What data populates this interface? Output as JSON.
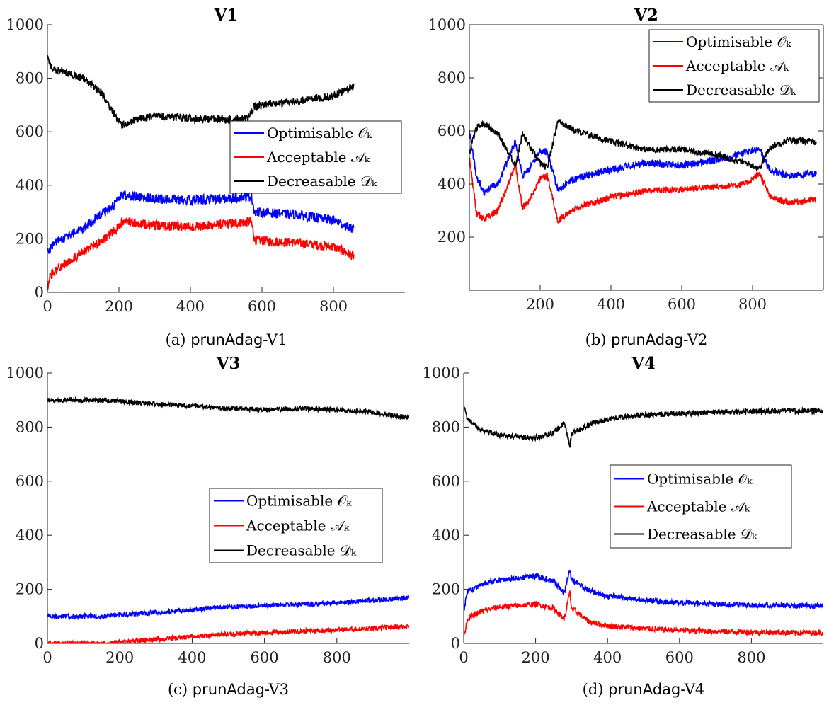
{
  "chart_data": [
    {
      "type": "line",
      "title": "V1",
      "caption_prefix": "(a)",
      "caption_name": "prunAdag",
      "caption_suffix": "-V1",
      "xlim": [
        0,
        1000
      ],
      "ylim": [
        0,
        1000
      ],
      "xticks": [
        0,
        200,
        400,
        600,
        800
      ],
      "yticks": [
        0,
        200,
        400,
        600,
        800,
        1000
      ],
      "legend": "center-right",
      "series": [
        {
          "name": "Optimisable 𝒪ₖ",
          "color": "#0000ff",
          "noise": 18,
          "x": [
            0,
            20,
            100,
            190,
            210,
            300,
            400,
            500,
            570,
            580,
            700,
            800,
            857
          ],
          "y": [
            150,
            185,
            240,
            330,
            365,
            350,
            345,
            350,
            360,
            300,
            290,
            270,
            235
          ]
        },
        {
          "name": "Acceptable 𝒜ₖ",
          "color": "#ff0000",
          "noise": 18,
          "x": [
            0,
            5,
            30,
            100,
            190,
            210,
            300,
            400,
            500,
            570,
            580,
            700,
            800,
            857
          ],
          "y": [
            10,
            60,
            90,
            150,
            230,
            265,
            250,
            245,
            255,
            265,
            195,
            185,
            170,
            135
          ]
        },
        {
          "name": "Decreasable 𝒟ₖ",
          "color": "#000000",
          "noise": 15,
          "x": [
            0,
            10,
            100,
            150,
            200,
            210,
            250,
            300,
            400,
            500,
            560,
            580,
            700,
            800,
            857
          ],
          "y": [
            880,
            840,
            800,
            745,
            640,
            625,
            645,
            660,
            650,
            645,
            650,
            695,
            715,
            735,
            770
          ]
        }
      ]
    },
    {
      "type": "line",
      "title": "V2",
      "caption_prefix": "(b)",
      "caption_name": "prunAdag",
      "caption_suffix": "-V2",
      "xlim": [
        0,
        1000
      ],
      "ylim": [
        0,
        1000
      ],
      "xticks": [
        200,
        400,
        600,
        800
      ],
      "yticks": [
        200,
        400,
        600,
        800,
        1000
      ],
      "legend": "top-right",
      "series": [
        {
          "name": "Optimisable 𝒪ₖ",
          "color": "#0000ff",
          "noise": 14,
          "x": [
            0,
            20,
            40,
            80,
            130,
            150,
            170,
            200,
            220,
            250,
            300,
            400,
            500,
            600,
            700,
            780,
            820,
            850,
            900,
            980
          ],
          "y": [
            600,
            430,
            370,
            400,
            560,
            430,
            460,
            525,
            520,
            380,
            420,
            455,
            480,
            470,
            490,
            520,
            530,
            450,
            430,
            440
          ]
        },
        {
          "name": "Acceptable 𝒜ₖ",
          "color": "#ff0000",
          "noise": 12,
          "x": [
            0,
            20,
            40,
            80,
            130,
            150,
            170,
            200,
            220,
            250,
            300,
            400,
            500,
            600,
            700,
            780,
            820,
            850,
            900,
            980
          ],
          "y": [
            500,
            290,
            265,
            300,
            470,
            310,
            340,
            420,
            430,
            260,
            310,
            350,
            375,
            380,
            390,
            400,
            440,
            350,
            330,
            340
          ]
        },
        {
          "name": "Decreasable 𝒟ₖ",
          "color": "#000000",
          "noise": 12,
          "x": [
            0,
            20,
            40,
            80,
            130,
            150,
            170,
            200,
            220,
            250,
            300,
            400,
            500,
            600,
            700,
            780,
            820,
            850,
            900,
            980
          ],
          "y": [
            520,
            610,
            630,
            590,
            470,
            590,
            540,
            480,
            460,
            640,
            600,
            560,
            530,
            530,
            510,
            480,
            460,
            540,
            565,
            560
          ]
        }
      ]
    },
    {
      "type": "line",
      "title": "V3",
      "caption_prefix": "(c)",
      "caption_name": "prunAdag",
      "caption_suffix": "-V3",
      "xlim": [
        0,
        1000
      ],
      "ylim": [
        0,
        1000
      ],
      "xticks": [
        0,
        200,
        400,
        600,
        800
      ],
      "yticks": [
        0,
        200,
        400,
        600,
        800,
        1000
      ],
      "legend": "center-right",
      "series": [
        {
          "name": "Optimisable 𝒪ₖ",
          "color": "#0000ff",
          "noise": 9,
          "x": [
            0,
            160,
            200,
            300,
            400,
            500,
            600,
            700,
            800,
            900,
            1000
          ],
          "y": [
            100,
            100,
            105,
            115,
            125,
            135,
            140,
            145,
            150,
            160,
            170
          ]
        },
        {
          "name": "Acceptable 𝒜ₖ",
          "color": "#ff0000",
          "noise": 9,
          "x": [
            0,
            160,
            200,
            300,
            400,
            500,
            600,
            700,
            800,
            900,
            1000
          ],
          "y": [
            0,
            0,
            5,
            15,
            25,
            35,
            40,
            45,
            50,
            55,
            65
          ]
        },
        {
          "name": "Decreasable 𝒟ₖ",
          "color": "#000000",
          "noise": 9,
          "x": [
            0,
            160,
            200,
            300,
            400,
            500,
            600,
            700,
            800,
            900,
            1000
          ],
          "y": [
            900,
            900,
            895,
            885,
            878,
            870,
            865,
            868,
            865,
            855,
            835
          ]
        }
      ]
    },
    {
      "type": "line",
      "title": "V4",
      "caption_prefix": "(d)",
      "caption_name": "prunAdag",
      "caption_suffix": "-V4",
      "xlim": [
        0,
        1000
      ],
      "ylim": [
        0,
        1000
      ],
      "xticks": [
        0,
        200,
        400,
        600,
        800
      ],
      "yticks": [
        0,
        200,
        400,
        600,
        800,
        1000
      ],
      "legend": "center-right",
      "series": [
        {
          "name": "Optimisable 𝒪ₖ",
          "color": "#0000ff",
          "noise": 10,
          "x": [
            0,
            10,
            50,
            100,
            150,
            200,
            250,
            280,
            295,
            300,
            350,
            400,
            500,
            600,
            700,
            800,
            900,
            1000
          ],
          "y": [
            120,
            190,
            220,
            235,
            240,
            250,
            230,
            185,
            275,
            235,
            195,
            175,
            160,
            150,
            145,
            142,
            140,
            140
          ]
        },
        {
          "name": "Acceptable 𝒜ₖ",
          "color": "#ff0000",
          "noise": 10,
          "x": [
            0,
            10,
            50,
            100,
            150,
            200,
            250,
            280,
            295,
            300,
            350,
            400,
            500,
            600,
            700,
            800,
            900,
            1000
          ],
          "y": [
            20,
            90,
            120,
            135,
            140,
            145,
            130,
            90,
            190,
            130,
            80,
            65,
            55,
            48,
            45,
            42,
            40,
            40
          ]
        },
        {
          "name": "Decreasable 𝒟ₖ",
          "color": "#000000",
          "noise": 10,
          "x": [
            0,
            10,
            50,
            100,
            150,
            200,
            250,
            280,
            295,
            300,
            350,
            400,
            500,
            600,
            700,
            800,
            900,
            1000
          ],
          "y": [
            880,
            830,
            790,
            770,
            765,
            760,
            780,
            815,
            730,
            775,
            810,
            830,
            845,
            850,
            855,
            858,
            860,
            860
          ]
        }
      ]
    }
  ]
}
